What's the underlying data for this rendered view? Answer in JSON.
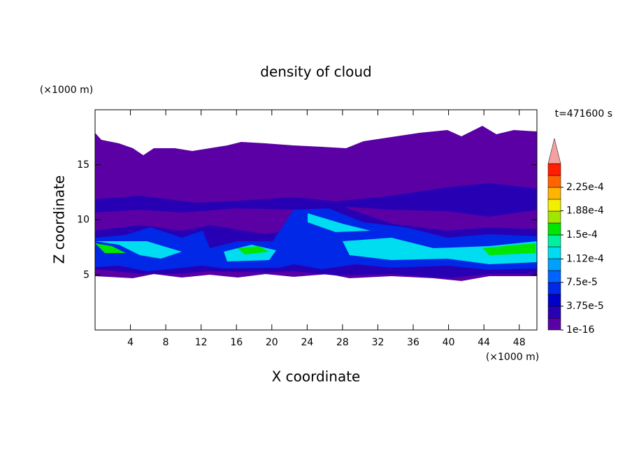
{
  "chart_data": {
    "type": "contour",
    "title": "density of cloud",
    "x_label": "X coordinate",
    "y_label": "Z coordinate",
    "x_unit": "(×1000 m)",
    "y_unit": "(×1000 m)",
    "annotation": "t=471600 s",
    "xlim": [
      0,
      50
    ],
    "xticks": [
      4,
      8,
      12,
      16,
      20,
      24,
      28,
      32,
      36,
      40,
      44,
      48
    ],
    "ylim": [
      0,
      20
    ],
    "yticks": [
      5,
      10,
      15
    ],
    "colorbar": {
      "ticks": [
        {
          "value": 1e-16,
          "label": "1e-16"
        },
        {
          "value": 3.75e-05,
          "label": "3.75e-5"
        },
        {
          "value": 7.5e-05,
          "label": "7.5e-5"
        },
        {
          "value": 0.000112,
          "label": "1.12e-4"
        },
        {
          "value": 0.00015,
          "label": "1.5e-4"
        },
        {
          "value": 0.000188,
          "label": "1.88e-4"
        },
        {
          "value": 0.000225,
          "label": "2.25e-4"
        }
      ],
      "colors": [
        "#5a00a5",
        "#2800b4",
        "#0000c8",
        "#0028e6",
        "#0064ff",
        "#00a0ff",
        "#00dcf0",
        "#00f0a0",
        "#00e600",
        "#a0e600",
        "#f0f000",
        "#ffb400",
        "#ff6400",
        "#ff1e00"
      ],
      "extend_color": "#f4a0a0"
    }
  }
}
